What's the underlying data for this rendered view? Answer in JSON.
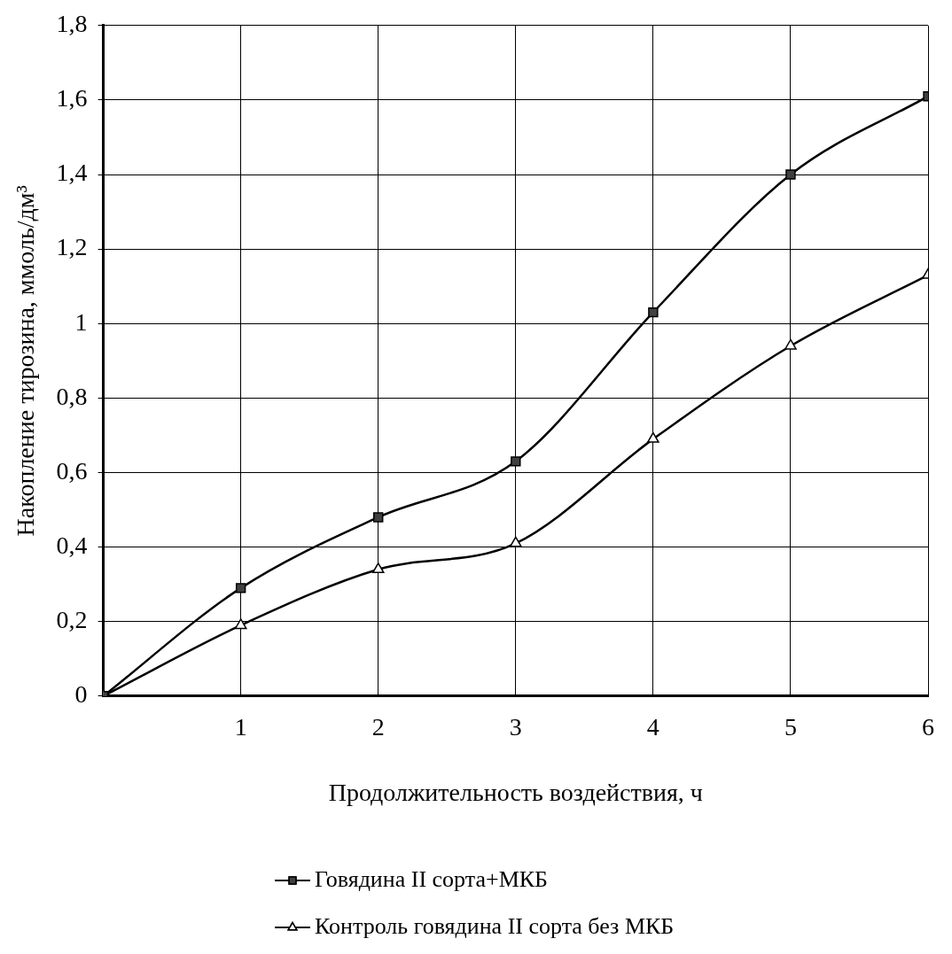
{
  "chart_data": {
    "type": "line",
    "xlabel": "Продолжительность воздействия, ч",
    "ylabel": "Накопление тирозина, ммоль/дм³",
    "x": [
      0,
      1,
      2,
      3,
      4,
      5,
      6
    ],
    "series": [
      {
        "name": "Говядина II сорта+МКБ",
        "color": "#000000",
        "marker": "square",
        "values": [
          0,
          0.29,
          0.48,
          0.63,
          1.03,
          1.4,
          1.61
        ]
      },
      {
        "name": "Контроль говядина II сорта без МКБ",
        "color": "#000000",
        "marker": "triangle",
        "values": [
          0,
          0.19,
          0.34,
          0.41,
          0.69,
          0.94,
          1.13
        ]
      }
    ],
    "xlim": [
      0,
      6
    ],
    "xticks": [
      {
        "value": 0,
        "label": null
      },
      1,
      2,
      3,
      4,
      5,
      6
    ],
    "ylim": [
      0,
      1.8
    ],
    "yticks": [
      0,
      {
        "value": 0.2,
        "label": "0,2"
      },
      {
        "value": 0.4,
        "label": "0,4"
      },
      {
        "value": 0.6,
        "label": "0,6"
      },
      {
        "value": 0.8,
        "label": "0,8"
      },
      1,
      {
        "value": 1.2,
        "label": "1,2"
      },
      {
        "value": 1.4,
        "label": "1,4"
      },
      {
        "value": 1.6,
        "label": "1,6"
      },
      {
        "value": 1.8,
        "label": "1,8"
      }
    ],
    "grid": true,
    "legend": "bottom",
    "line_style": "solid"
  }
}
